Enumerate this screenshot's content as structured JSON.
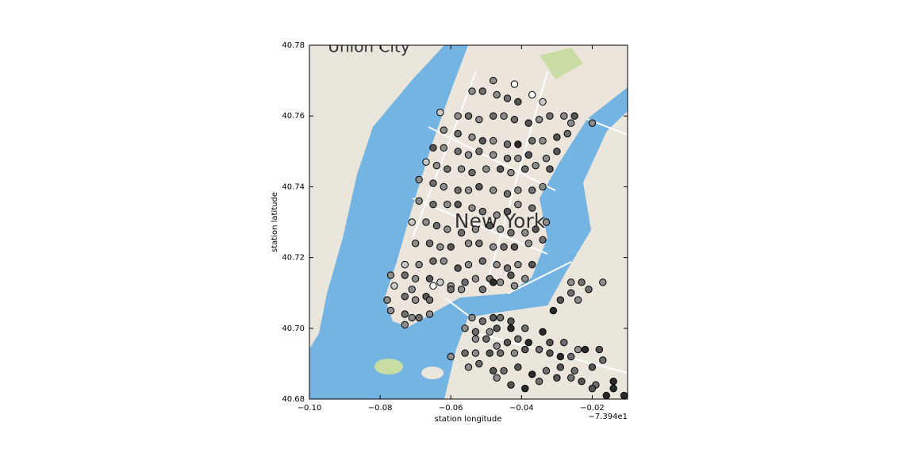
{
  "chart_data": {
    "type": "scatter",
    "xlabel": "station longitude",
    "ylabel": "station latitude",
    "x_offset_label": "−7.394e1",
    "map_labels": [
      "Union City",
      "New York"
    ],
    "xlim": [
      -0.1,
      -0.01
    ],
    "ylim": [
      40.68,
      40.78
    ],
    "xticks": [
      {
        "value": -0.1,
        "label": "−0.10"
      },
      {
        "value": -0.08,
        "label": "−0.08"
      },
      {
        "value": -0.06,
        "label": "−0.06"
      },
      {
        "value": -0.04,
        "label": "−0.04"
      },
      {
        "value": -0.02,
        "label": "−0.02"
      }
    ],
    "yticks": [
      40.68,
      {
        "value": 40.7,
        "label": "40.70"
      },
      40.72,
      40.74,
      40.76,
      40.78
    ],
    "grid": false,
    "x": [
      -0.048,
      -0.042,
      -0.037,
      -0.034,
      -0.054,
      -0.051,
      -0.047,
      -0.044,
      -0.041,
      -0.063,
      -0.058,
      -0.055,
      -0.052,
      -0.048,
      -0.045,
      -0.042,
      -0.038,
      -0.035,
      -0.032,
      -0.028,
      -0.025,
      -0.02,
      -0.062,
      -0.058,
      -0.054,
      -0.051,
      -0.048,
      -0.044,
      -0.041,
      -0.037,
      -0.034,
      -0.03,
      -0.027,
      -0.026,
      -0.065,
      -0.062,
      -0.058,
      -0.055,
      -0.052,
      -0.048,
      -0.044,
      -0.041,
      -0.038,
      -0.033,
      -0.03,
      -0.067,
      -0.064,
      -0.061,
      -0.057,
      -0.054,
      -0.05,
      -0.046,
      -0.043,
      -0.039,
      -0.036,
      -0.032,
      -0.069,
      -0.065,
      -0.062,
      -0.058,
      -0.055,
      -0.052,
      -0.048,
      -0.044,
      -0.041,
      -0.037,
      -0.034,
      -0.069,
      -0.065,
      -0.061,
      -0.058,
      -0.054,
      -0.051,
      -0.047,
      -0.044,
      -0.041,
      -0.037,
      -0.071,
      -0.067,
      -0.064,
      -0.061,
      -0.057,
      -0.053,
      -0.049,
      -0.046,
      -0.043,
      -0.039,
      -0.036,
      -0.033,
      -0.07,
      -0.066,
      -0.063,
      -0.06,
      -0.055,
      -0.052,
      -0.048,
      -0.045,
      -0.042,
      -0.038,
      -0.034,
      -0.073,
      -0.069,
      -0.065,
      -0.062,
      -0.058,
      -0.055,
      -0.051,
      -0.047,
      -0.044,
      -0.041,
      -0.037,
      -0.077,
      -0.073,
      -0.07,
      -0.066,
      -0.063,
      -0.06,
      -0.056,
      -0.053,
      -0.049,
      -0.046,
      -0.043,
      -0.039,
      -0.076,
      -0.071,
      -0.065,
      -0.06,
      -0.057,
      -0.051,
      -0.048,
      -0.042,
      -0.078,
      -0.073,
      -0.07,
      -0.067,
      -0.066,
      -0.077,
      -0.073,
      -0.071,
      -0.069,
      -0.066,
      -0.073,
      -0.026,
      -0.023,
      -0.017,
      -0.026,
      -0.029,
      -0.024,
      -0.021,
      -0.031,
      -0.054,
      -0.051,
      -0.048,
      -0.046,
      -0.043,
      -0.056,
      -0.053,
      -0.049,
      -0.047,
      -0.043,
      -0.039,
      -0.053,
      -0.05,
      -0.047,
      -0.044,
      -0.041,
      -0.038,
      -0.034,
      -0.032,
      -0.028,
      -0.024,
      -0.06,
      -0.056,
      -0.053,
      -0.049,
      -0.046,
      -0.042,
      -0.039,
      -0.035,
      -0.032,
      -0.029,
      -0.026,
      -0.022,
      -0.018,
      -0.055,
      -0.052,
      -0.048,
      -0.045,
      -0.041,
      -0.037,
      -0.033,
      -0.029,
      -0.025,
      -0.02,
      -0.017,
      -0.047,
      -0.043,
      -0.039,
      -0.035,
      -0.03,
      -0.026,
      -0.023,
      -0.019,
      -0.014,
      -0.02,
      -0.016,
      -0.014,
      -0.011
    ],
    "values": [
      40.77,
      40.769,
      40.766,
      40.764,
      40.767,
      40.767,
      40.766,
      40.765,
      40.764,
      40.761,
      40.76,
      40.76,
      40.759,
      40.76,
      40.76,
      40.759,
      40.758,
      40.759,
      40.76,
      40.76,
      40.76,
      40.758,
      40.756,
      40.755,
      40.754,
      40.753,
      40.753,
      40.752,
      40.752,
      40.753,
      40.753,
      40.754,
      40.755,
      40.758,
      40.751,
      40.751,
      40.75,
      40.749,
      40.75,
      40.749,
      40.748,
      40.748,
      40.749,
      40.748,
      40.75,
      40.747,
      40.746,
      40.745,
      40.745,
      40.744,
      40.745,
      40.745,
      40.744,
      40.745,
      40.746,
      40.745,
      40.742,
      40.741,
      40.74,
      40.739,
      40.739,
      40.74,
      40.739,
      40.738,
      40.739,
      40.739,
      40.74,
      40.736,
      40.735,
      40.735,
      40.735,
      40.734,
      40.733,
      40.732,
      40.733,
      40.735,
      40.734,
      40.73,
      40.73,
      40.729,
      40.728,
      40.727,
      40.728,
      40.729,
      40.728,
      40.727,
      40.727,
      40.728,
      40.73,
      40.724,
      40.724,
      40.723,
      40.723,
      40.724,
      40.724,
      40.723,
      40.723,
      40.723,
      40.724,
      40.725,
      40.718,
      40.718,
      40.719,
      40.719,
      40.717,
      40.718,
      40.719,
      40.718,
      40.717,
      40.718,
      40.718,
      40.715,
      40.715,
      40.714,
      40.714,
      40.713,
      40.712,
      40.713,
      40.714,
      40.714,
      40.713,
      40.715,
      40.714,
      40.712,
      40.711,
      40.712,
      40.711,
      40.711,
      40.711,
      40.713,
      40.712,
      40.708,
      40.709,
      40.708,
      40.709,
      40.708,
      40.705,
      40.704,
      40.703,
      40.703,
      40.704,
      40.701,
      40.713,
      40.713,
      40.713,
      40.71,
      40.708,
      40.708,
      40.711,
      40.705,
      40.703,
      40.702,
      40.703,
      40.703,
      40.702,
      40.7,
      40.699,
      40.699,
      40.7,
      40.7,
      40.7,
      40.697,
      40.697,
      40.695,
      40.696,
      40.697,
      40.696,
      40.699,
      40.696,
      40.696,
      40.694,
      40.692,
      40.693,
      40.693,
      40.693,
      40.693,
      40.693,
      40.694,
      40.694,
      40.693,
      40.692,
      40.692,
      40.694,
      40.694,
      40.689,
      40.69,
      40.688,
      40.688,
      40.689,
      40.687,
      40.688,
      40.689,
      40.688,
      40.689,
      40.691,
      40.686,
      40.684,
      40.683,
      40.685,
      40.686,
      40.686,
      40.685,
      40.684,
      40.685,
      40.683,
      40.681,
      40.683,
      40.681
    ],
    "colors": [
      "#8c8c8c",
      "#ffffff",
      "#ffffff",
      "#c8c8c8",
      "#8c8c8c",
      "#6e6e6e",
      "#8c8c8c",
      "#6e6e6e",
      "#555555",
      "#c8c8c8",
      "#8c8c8c",
      "#6e6e6e",
      "#8c8c8c",
      "#6e6e6e",
      "#8c8c8c",
      "#6e6e6e",
      "#555555",
      "#8c8c8c",
      "#6e6e6e",
      "#8c8c8c",
      "#555555",
      "#8c8c8c",
      "#8c8c8c",
      "#6e6e6e",
      "#8c8c8c",
      "#555555",
      "#8c8c8c",
      "#6e6e6e",
      "#2a2a2a",
      "#6e6e6e",
      "#8c8c8c",
      "#555555",
      "#6e6e6e",
      "#8c8c8c",
      "#555555",
      "#8c8c8c",
      "#6e6e6e",
      "#8c8c8c",
      "#6e6e6e",
      "#8c8c8c",
      "#6e6e6e",
      "#8c8c8c",
      "#555555",
      "#8c8c8c",
      "#555555",
      "#c8c8c8",
      "#8c8c8c",
      "#6e6e6e",
      "#8c8c8c",
      "#6e6e6e",
      "#8c8c8c",
      "#555555",
      "#8c8c8c",
      "#6e6e6e",
      "#8c8c8c",
      "#555555",
      "#8c8c8c",
      "#6e6e6e",
      "#8c8c8c",
      "#6e6e6e",
      "#8c8c8c",
      "#555555",
      "#8c8c8c",
      "#6e6e6e",
      "#8c8c8c",
      "#6e6e6e",
      "#8c8c8c",
      "#8c8c8c",
      "#6e6e6e",
      "#8c8c8c",
      "#555555",
      "#8c8c8c",
      "#6e6e6e",
      "#8c8c8c",
      "#555555",
      "#8c8c8c",
      "#6e6e6e",
      "#c8c8c8",
      "#8c8c8c",
      "#6e6e6e",
      "#8c8c8c",
      "#6e6e6e",
      "#8c8c8c",
      "#555555",
      "#8c8c8c",
      "#6e6e6e",
      "#8c8c8c",
      "#555555",
      "#8c8c8c",
      "#8c8c8c",
      "#6e6e6e",
      "#8c8c8c",
      "#555555",
      "#8c8c8c",
      "#6e6e6e",
      "#8c8c8c",
      "#6e6e6e",
      "#555555",
      "#8c8c8c",
      "#6e6e6e",
      "#c8c8c8",
      "#8c8c8c",
      "#6e6e6e",
      "#8c8c8c",
      "#555555",
      "#8c8c8c",
      "#6e6e6e",
      "#8c8c8c",
      "#6e6e6e",
      "#8c8c8c",
      "#555555",
      "#8c8c8c",
      "#6e6e6e",
      "#8c8c8c",
      "#555555",
      "#c8c8c8",
      "#8c8c8c",
      "#6e6e6e",
      "#8c8c8c",
      "#6e6e6e",
      "#8c8c8c",
      "#555555",
      "#8c8c8c",
      "#c8c8c8",
      "#8c8c8c",
      "#ffffff",
      "#6e6e6e",
      "#8c8c8c",
      "#6e6e6e",
      "#2a2a2a",
      "#8c8c8c",
      "#8c8c8c",
      "#6e6e6e",
      "#8c8c8c",
      "#555555",
      "#6e6e6e",
      "#8c8c8c",
      "#6e6e6e",
      "#8c8c8c",
      "#6e6e6e",
      "#8c8c8c",
      "#8c8c8c",
      "#8c8c8c",
      "#6e6e6e",
      "#8c8c8c",
      "#6e6e6e",
      "#555555",
      "#8c8c8c",
      "#6e6e6e",
      "#2a2a2a",
      "#8c8c8c",
      "#6e6e6e",
      "#555555",
      "#6e6e6e",
      "#555555",
      "#8c8c8c",
      "#6e6e6e",
      "#8c8c8c",
      "#555555",
      "#2a2a2a",
      "#6e6e6e",
      "#8c8c8c",
      "#6e6e6e",
      "#8c8c8c",
      "#555555",
      "#6e6e6e",
      "#2a2a2a",
      "#2a2a2a",
      "#555555",
      "#6e6e6e",
      "#8c8c8c",
      "#8c8c8c",
      "#6e6e6e",
      "#8c8c8c",
      "#555555",
      "#6e6e6e",
      "#8c8c8c",
      "#555555",
      "#6e6e6e",
      "#555555",
      "#2a2a2a",
      "#6e6e6e",
      "#2a2a2a",
      "#555555",
      "#8c8c8c",
      "#6e6e6e",
      "#555555",
      "#6e6e6e",
      "#555555",
      "#2a2a2a",
      "#6e6e6e",
      "#555555",
      "#6e6e6e",
      "#555555",
      "#6e6e6e",
      "#8c8c8c",
      "#555555",
      "#2a2a2a",
      "#6e6e6e",
      "#555555",
      "#6e6e6e",
      "#555555",
      "#6e6e6e",
      "#2a2a2a",
      "#555555",
      "#2a2a2a",
      "#2a2a2a",
      "#2a2a2a"
    ]
  }
}
